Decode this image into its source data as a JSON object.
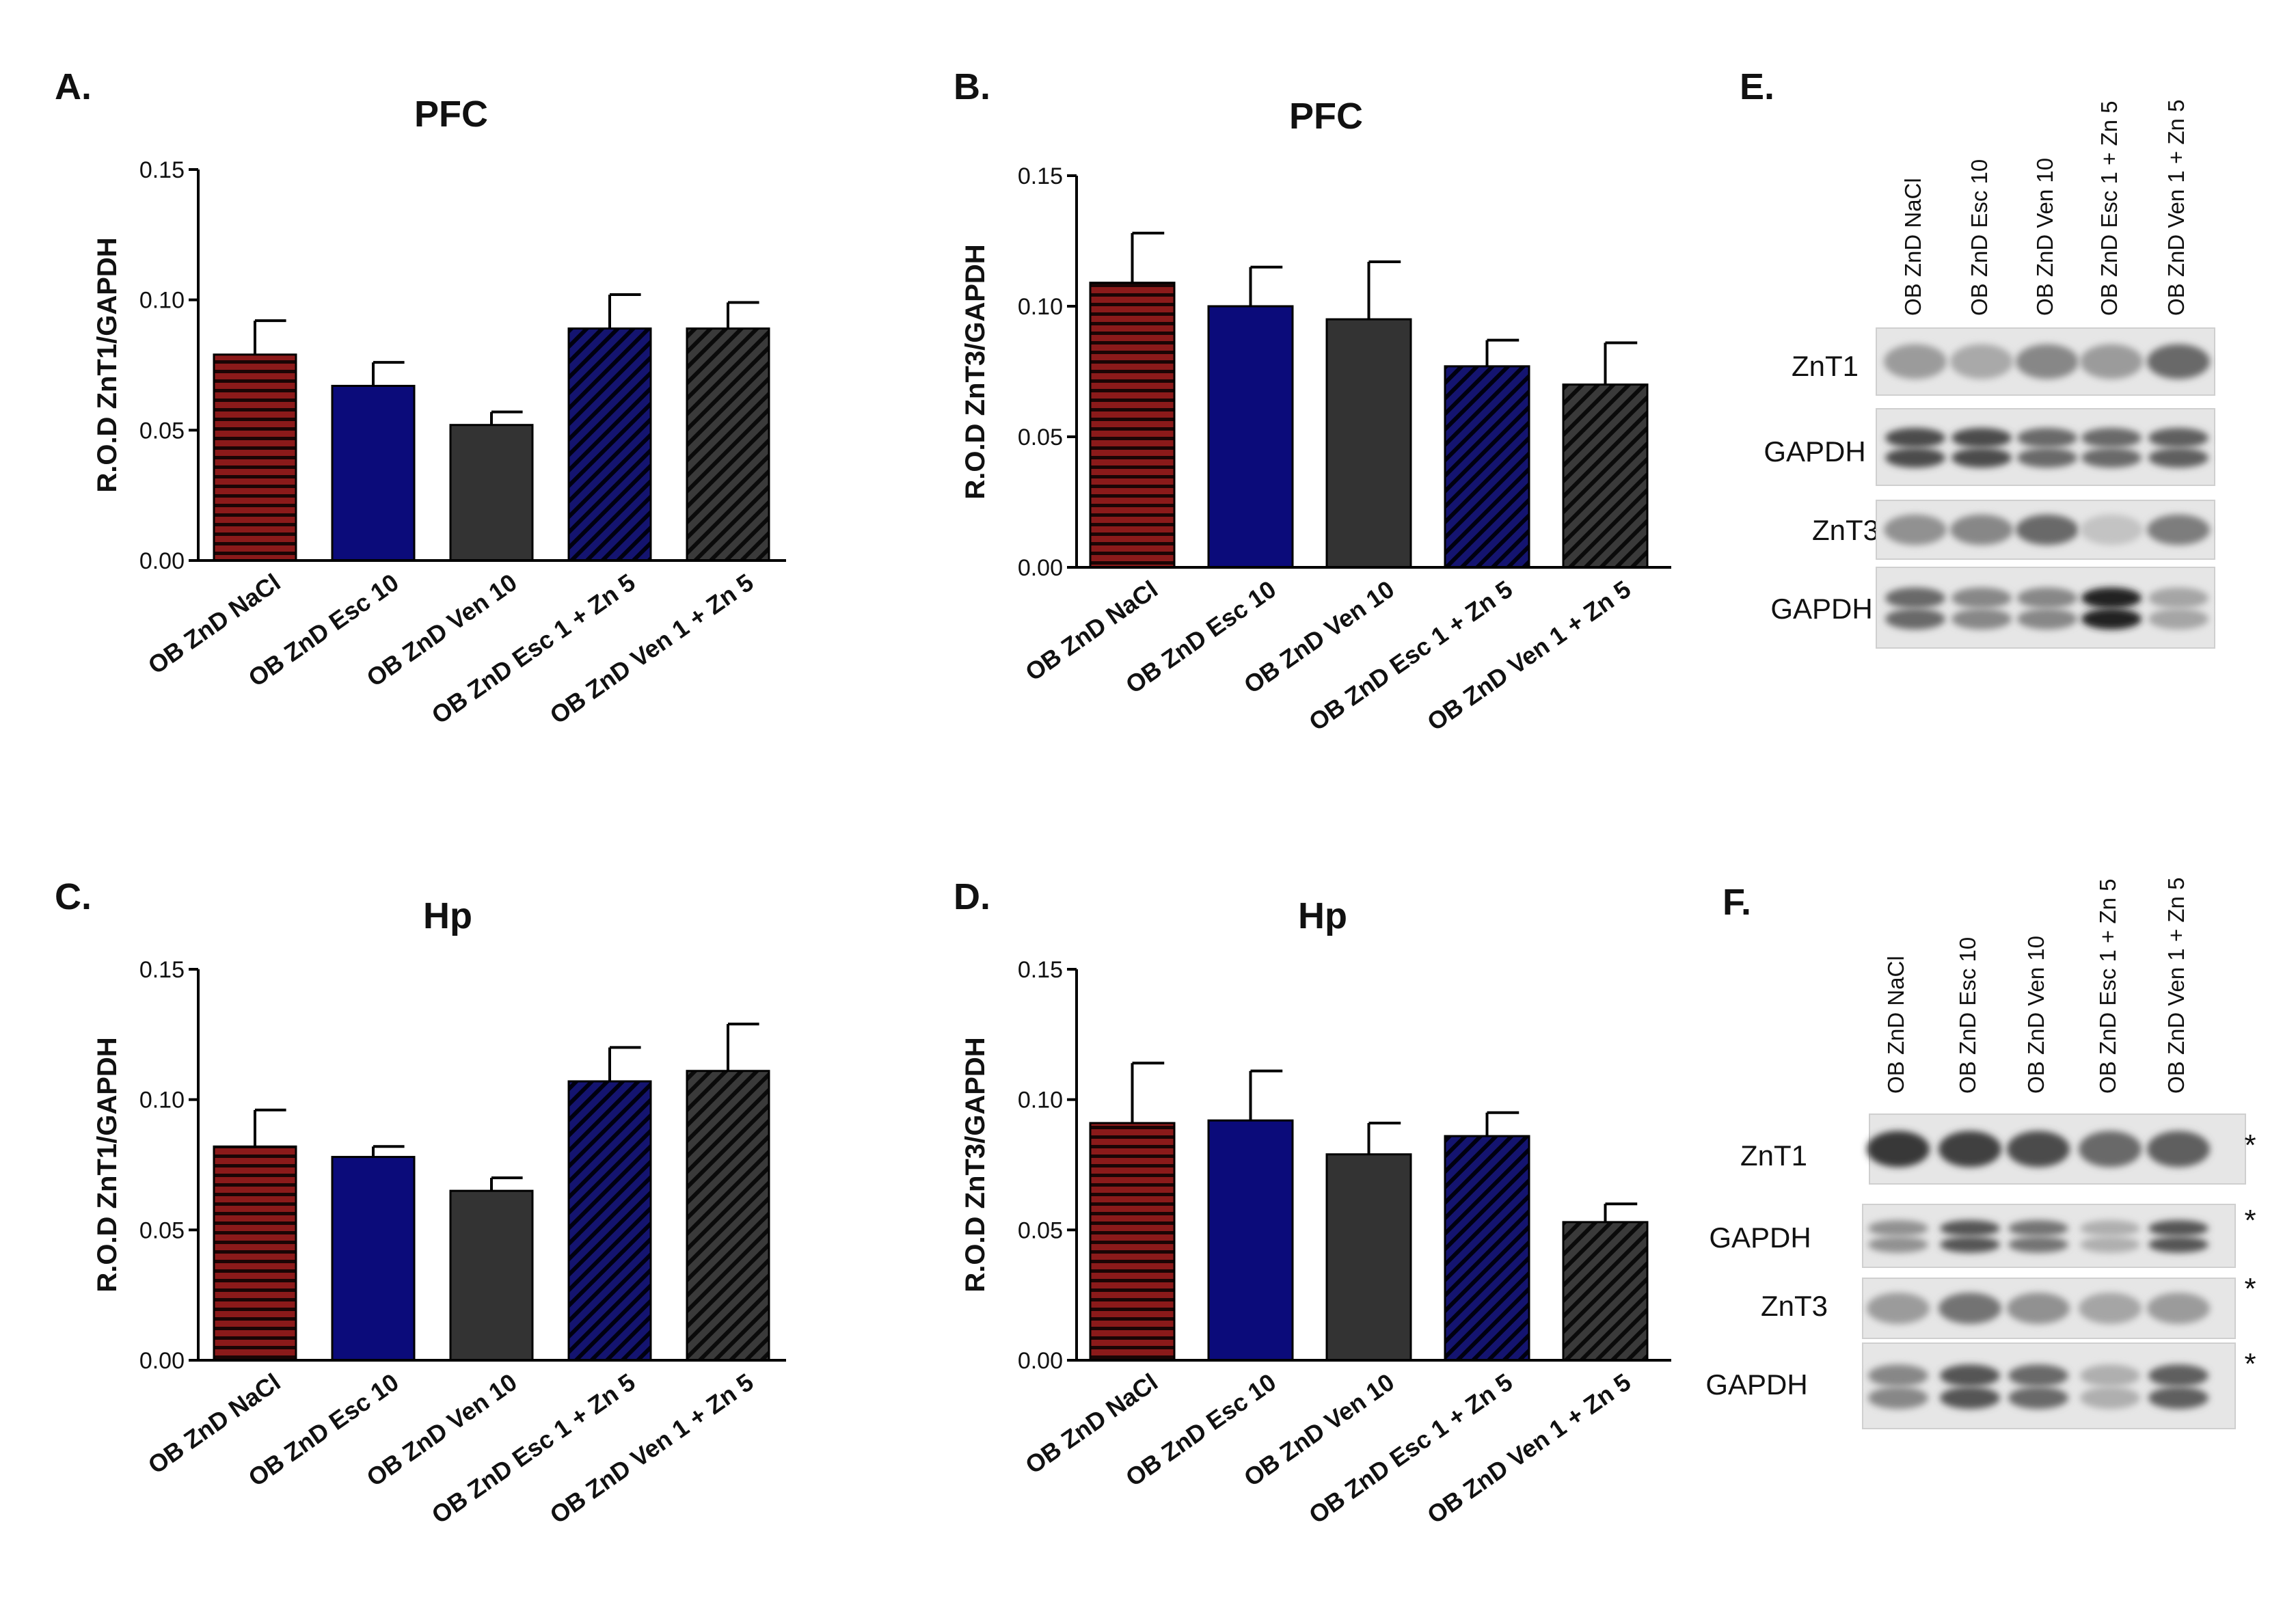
{
  "colors": {
    "nacl": "#8b1a1a",
    "esc10": "#0b0b7a",
    "ven10": "#333333",
    "esc_zn": "#141470",
    "ven_zn": "#3a3a3a",
    "axis": "#111111"
  },
  "chart_data": [
    {
      "panel": "A.",
      "type": "bar",
      "title": "PFC",
      "ylabel": "R.O.D ZnT1/GAPDH",
      "ylim": [
        0,
        0.15
      ],
      "yticks": [
        "0.00",
        "0.05",
        "0.10",
        "0.15"
      ],
      "categories": [
        "OB ZnD NaCl",
        "OB ZnD Esc 10",
        "OB ZnD Ven 10",
        "OB ZnD Esc 1 + Zn 5",
        "OB ZnD Ven 1 + Zn 5"
      ],
      "values": [
        0.079,
        0.067,
        0.052,
        0.089,
        0.089
      ],
      "errors": [
        0.013,
        0.009,
        0.005,
        0.013,
        0.01
      ]
    },
    {
      "panel": "B.",
      "type": "bar",
      "title": "PFC",
      "ylabel": "R.O.D ZnT3/GAPDH",
      "ylim": [
        0,
        0.15
      ],
      "yticks": [
        "0.00",
        "0.05",
        "0.10",
        "0.15"
      ],
      "categories": [
        "OB ZnD NaCl",
        "OB ZnD Esc 10",
        "OB ZnD Ven 10",
        "OB ZnD Esc 1 + Zn 5",
        "OB ZnD Ven 1 + Zn 5"
      ],
      "values": [
        0.109,
        0.1,
        0.095,
        0.077,
        0.07
      ],
      "errors": [
        0.019,
        0.015,
        0.022,
        0.01,
        0.016
      ]
    },
    {
      "panel": "C.",
      "type": "bar",
      "title": "Hp",
      "ylabel": "R.O.D ZnT1/GAPDH",
      "ylim": [
        0,
        0.15
      ],
      "yticks": [
        "0.00",
        "0.05",
        "0.10",
        "0.15"
      ],
      "categories": [
        "OB ZnD NaCl",
        "OB ZnD Esc 10",
        "OB ZnD Ven 10",
        "OB ZnD Esc 1 + Zn 5",
        "OB ZnD Ven 1 + Zn 5"
      ],
      "values": [
        0.082,
        0.078,
        0.065,
        0.107,
        0.111
      ],
      "errors": [
        0.014,
        0.004,
        0.005,
        0.013,
        0.018
      ]
    },
    {
      "panel": "D.",
      "type": "bar",
      "title": "Hp",
      "ylabel": "R.O.D ZnT3/GAPDH",
      "ylim": [
        0,
        0.15
      ],
      "yticks": [
        "0.00",
        "0.05",
        "0.10",
        "0.15"
      ],
      "categories": [
        "OB ZnD NaCl",
        "OB ZnD Esc 10",
        "OB ZnD Ven 10",
        "OB ZnD Esc 1 + Zn 5",
        "OB ZnD Ven 1 + Zn 5"
      ],
      "values": [
        0.091,
        0.092,
        0.079,
        0.086,
        0.053
      ],
      "errors": [
        0.023,
        0.019,
        0.012,
        0.009,
        0.007
      ]
    }
  ],
  "blots": [
    {
      "panel": "E.",
      "lanes": [
        "OB ZnD  NaCl",
        "OB  ZnD Esc 10",
        "OB  ZnD Ven  10",
        "OB  ZnD Esc  1 + Zn 5",
        "OB  ZnD  Ven   1 + Zn 5"
      ],
      "rows": [
        "ZnT1",
        "GAPDH",
        "ZnT3",
        "GAPDH"
      ],
      "intensity": [
        [
          0.35,
          0.28,
          0.45,
          0.35,
          0.6
        ],
        [
          0.75,
          0.75,
          0.6,
          0.6,
          0.65
        ],
        [
          0.4,
          0.45,
          0.6,
          0.15,
          0.5
        ],
        [
          0.6,
          0.45,
          0.45,
          0.95,
          0.3
        ]
      ]
    },
    {
      "panel": "F.",
      "lanes": [
        "OB ZnD  NaCl",
        "OB  ZnD Esc 10",
        "OB  ZnD Ven 10",
        "OB  ZnD Esc  1 + Zn 5",
        "OB  ZnD  Ven   1 + Zn 5"
      ],
      "rows": [
        "ZnT1",
        "GAPDH",
        "ZnT3",
        "GAPDH"
      ],
      "intensity": [
        [
          0.85,
          0.8,
          0.75,
          0.6,
          0.65
        ],
        [
          0.4,
          0.7,
          0.55,
          0.25,
          0.7
        ],
        [
          0.35,
          0.55,
          0.4,
          0.3,
          0.35
        ],
        [
          0.45,
          0.7,
          0.6,
          0.25,
          0.65
        ]
      ],
      "significance": [
        "*",
        "*",
        "*",
        "*"
      ]
    }
  ]
}
